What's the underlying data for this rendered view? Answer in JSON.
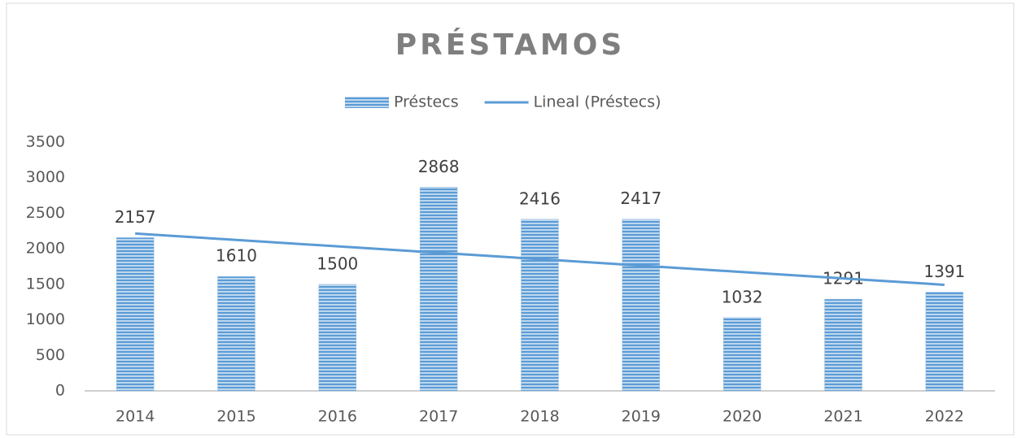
{
  "chart_data": {
    "type": "bar",
    "title": "PRÉSTAMOS",
    "categories": [
      "2014",
      "2015",
      "2016",
      "2017",
      "2018",
      "2019",
      "2020",
      "2021",
      "2022"
    ],
    "series": [
      {
        "name": "Préstecs",
        "type": "bar",
        "color": "#5b9bd5",
        "values": [
          2157,
          1610,
          1500,
          2868,
          2416,
          2417,
          1032,
          1291,
          1391
        ]
      },
      {
        "name": "Lineal (Préstecs)",
        "type": "line",
        "color": "#5b9bd5",
        "values": [
          2214,
          2124,
          2034,
          1944,
          1854,
          1763,
          1673,
          1583,
          1493
        ]
      }
    ],
    "ylim": [
      0,
      3500
    ],
    "yticks": [
      0,
      500,
      1000,
      1500,
      2000,
      2500,
      3000,
      3500
    ],
    "grid": false,
    "legend": "top"
  }
}
